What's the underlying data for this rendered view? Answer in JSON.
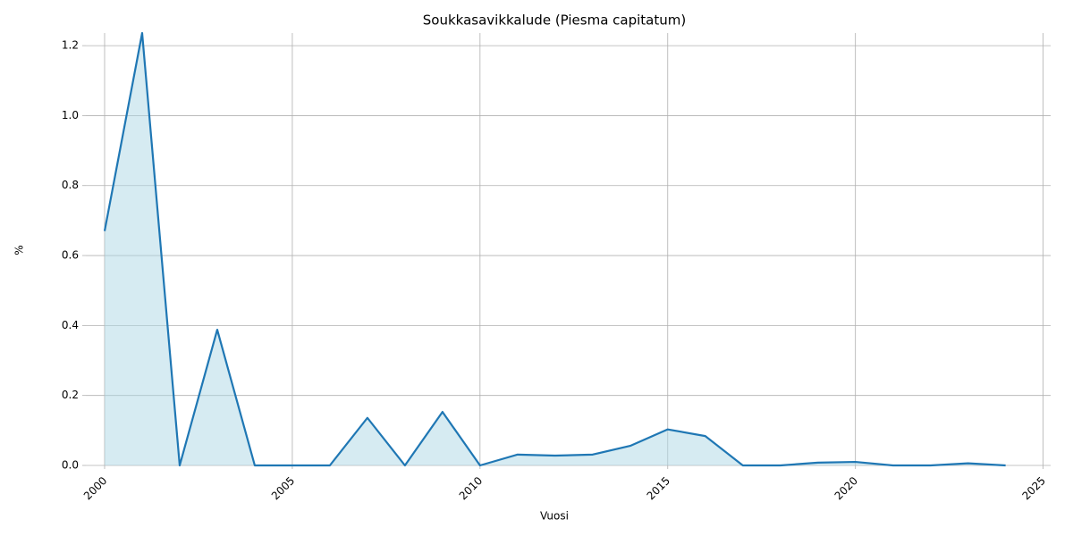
{
  "chart_data": {
    "type": "line",
    "title": "Soukkasavikkalude (Piesma capitatum)",
    "x_label": "Vuosi",
    "y_label": "%",
    "x": [
      2000,
      2001,
      2002,
      2003,
      2004,
      2005,
      2006,
      2007,
      2008,
      2009,
      2010,
      2011,
      2012,
      2013,
      2014,
      2015,
      2016,
      2017,
      2018,
      2019,
      2020,
      2021,
      2022,
      2023,
      2024
    ],
    "values": [
      0.67,
      1.236,
      0,
      0.388,
      0,
      0,
      0,
      0.136,
      0,
      0.153,
      0,
      0.031,
      0.028,
      0.031,
      0.056,
      0.103,
      0.084,
      0,
      0,
      0.008,
      0.01,
      0,
      0,
      0.006,
      0
    ],
    "color": "#1f77b4",
    "fill_color": "#add8e6",
    "xlim": [
      1999.5,
      2025.2
    ],
    "ylim": [
      0,
      1.236
    ],
    "xticks": [
      2000,
      2005,
      2010,
      2015,
      2020,
      2025
    ],
    "yticks": [
      {
        "value": 0,
        "label": "0.0"
      },
      0.2,
      0.4,
      0.6,
      0.8,
      {
        "value": 1,
        "label": "1.0"
      },
      1.2
    ],
    "grid": true
  }
}
